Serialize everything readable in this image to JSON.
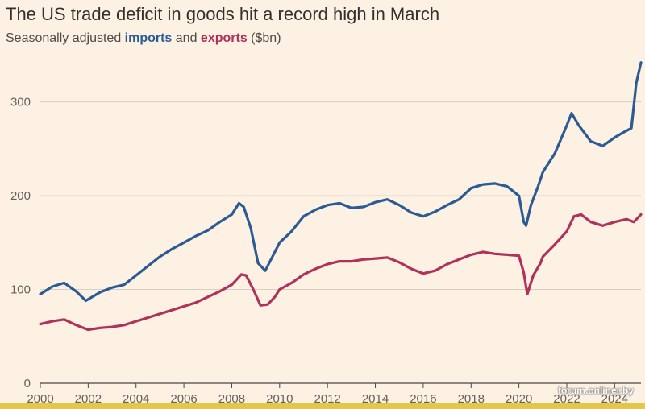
{
  "title": "The US trade deficit in goods hit a record high in March",
  "subtitle": {
    "prefix": "Seasonally adjusted ",
    "imports": "imports",
    "middle": " and ",
    "exports": "exports",
    "suffix": " ($bn)"
  },
  "watermark": "forum.onliner.by",
  "colors": {
    "imports": "#2c5b94",
    "exports": "#b0315a",
    "background": "#fdf1e4",
    "grid": "#d8cfc4"
  },
  "chart_data": {
    "type": "line",
    "title": "The US trade deficit in goods hit a record high in March",
    "subtitle": "Seasonally adjusted imports and exports ($bn)",
    "xlabel": "",
    "ylabel": "",
    "xlim": [
      2000,
      2025.1
    ],
    "ylim": [
      0,
      340
    ],
    "yticks": [
      0,
      100,
      200,
      300
    ],
    "xticks": [
      2000,
      2002,
      2004,
      2006,
      2008,
      2010,
      2012,
      2014,
      2016,
      2018,
      2020,
      2022,
      2024
    ],
    "grid": "horizontal",
    "legend": "in subtitle",
    "series": [
      {
        "name": "imports",
        "color": "#2c5b94",
        "x": [
          2000,
          2000.5,
          2001,
          2001.5,
          2001.9,
          2002.5,
          2003,
          2003.5,
          2004,
          2004.5,
          2005,
          2005.5,
          2006,
          2006.5,
          2007,
          2007.5,
          2008,
          2008.3,
          2008.5,
          2008.8,
          2009.1,
          2009.4,
          2009.7,
          2010,
          2010.5,
          2011,
          2011.5,
          2012,
          2012.5,
          2013,
          2013.5,
          2014,
          2014.5,
          2015,
          2015.5,
          2016,
          2016.5,
          2017,
          2017.5,
          2018,
          2018.5,
          2019,
          2019.5,
          2020,
          2020.2,
          2020.3,
          2020.5,
          2020.8,
          2021,
          2021.5,
          2022,
          2022.2,
          2022.5,
          2023,
          2023.5,
          2024,
          2024.4,
          2024.7,
          2024.9,
          2025.1
        ],
        "y": [
          95,
          103,
          107,
          98,
          88,
          97,
          102,
          105,
          115,
          125,
          135,
          143,
          150,
          157,
          163,
          172,
          180,
          192,
          188,
          165,
          128,
          120,
          135,
          150,
          162,
          178,
          185,
          190,
          192,
          187,
          188,
          193,
          196,
          190,
          182,
          178,
          183,
          190,
          196,
          208,
          212,
          213,
          210,
          200,
          172,
          168,
          190,
          210,
          225,
          245,
          275,
          288,
          275,
          258,
          253,
          262,
          268,
          272,
          320,
          342
        ]
      },
      {
        "name": "exports",
        "color": "#b0315a",
        "x": [
          2000,
          2000.5,
          2001,
          2001.5,
          2002,
          2002.5,
          2003,
          2003.5,
          2004,
          2004.5,
          2005,
          2005.5,
          2006,
          2006.5,
          2007,
          2007.5,
          2008,
          2008.4,
          2008.6,
          2008.9,
          2009.2,
          2009.5,
          2009.8,
          2010,
          2010.5,
          2011,
          2011.5,
          2012,
          2012.5,
          2013,
          2013.5,
          2014,
          2014.5,
          2015,
          2015.5,
          2016,
          2016.5,
          2017,
          2017.5,
          2018,
          2018.5,
          2019,
          2019.5,
          2020,
          2020.2,
          2020.35,
          2020.6,
          2020.9,
          2021,
          2021.5,
          2022,
          2022.3,
          2022.6,
          2023,
          2023.5,
          2024,
          2024.5,
          2024.8,
          2025.1
        ],
        "y": [
          63,
          66,
          68,
          62,
          57,
          59,
          60,
          62,
          66,
          70,
          74,
          78,
          82,
          86,
          92,
          98,
          105,
          116,
          115,
          100,
          83,
          84,
          92,
          100,
          107,
          116,
          122,
          127,
          130,
          130,
          132,
          133,
          134,
          129,
          122,
          117,
          120,
          127,
          132,
          137,
          140,
          138,
          137,
          136,
          118,
          95,
          115,
          128,
          135,
          148,
          162,
          178,
          180,
          172,
          168,
          172,
          175,
          172,
          180
        ]
      }
    ]
  }
}
